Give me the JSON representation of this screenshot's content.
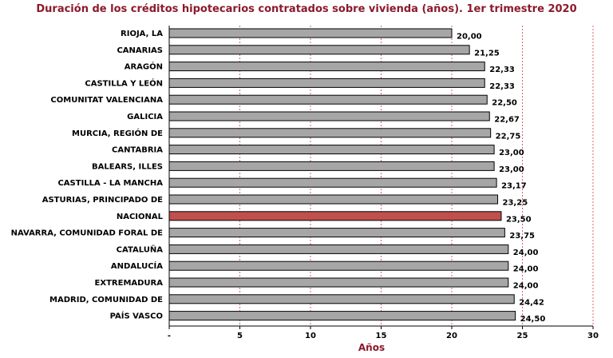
{
  "chart_data": {
    "type": "bar",
    "orientation": "horizontal",
    "title": "Duración de los créditos hipotecarios contratados sobre vivienda (años). 1er trimestre 2020",
    "xlabel": "Años",
    "ylabel": "",
    "xlim": [
      0,
      30
    ],
    "xticks": [
      "-",
      "5",
      "10",
      "15",
      "20",
      "25",
      "30"
    ],
    "grid": "vertical dashed",
    "categories": [
      "RIOJA, LA",
      "CANARIAS",
      "ARAGÓN",
      "CASTILLA Y LEÓN",
      "COMUNITAT VALENCIANA",
      "GALICIA",
      "MURCIA, REGIÓN DE",
      "CANTABRIA",
      "BALEARS, ILLES",
      "CASTILLA - LA MANCHA",
      "ASTURIAS, PRINCIPADO DE",
      "NACIONAL",
      "NAVARRA, COMUNIDAD FORAL DE",
      "CATALUÑA",
      "ANDALUCÍA",
      "EXTREMADURA",
      "MADRID, COMUNIDAD DE",
      "PAÍS VASCO"
    ],
    "values": [
      20.0,
      21.25,
      22.33,
      22.33,
      22.5,
      22.67,
      22.75,
      23.0,
      23.0,
      23.17,
      23.25,
      23.5,
      23.75,
      24.0,
      24.0,
      24.0,
      24.42,
      24.5
    ],
    "value_labels": [
      "20,00",
      "21,25",
      "22,33",
      "22,33",
      "22,50",
      "22,67",
      "22,75",
      "23,00",
      "23,00",
      "23,17",
      "23,25",
      "23,50",
      "23,75",
      "24,00",
      "24,00",
      "24,00",
      "24,42",
      "24,50"
    ],
    "highlight_category": "NACIONAL",
    "colors": {
      "bar": "#a6a6a6",
      "highlight": "#c0504d",
      "title": "#8b1a2b",
      "grid": "#c9444a"
    }
  }
}
